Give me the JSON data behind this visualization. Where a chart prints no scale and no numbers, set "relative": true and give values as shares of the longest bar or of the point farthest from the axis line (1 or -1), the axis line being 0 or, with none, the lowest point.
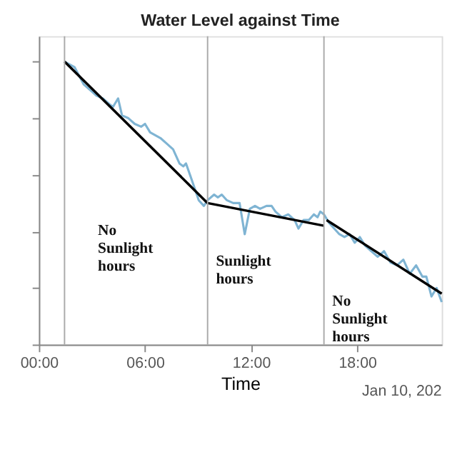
{
  "chart_data": {
    "type": "line",
    "title": "Water Level against Time",
    "xlabel": "Time",
    "relative": true,
    "tick_labels": "x",
    "grid": false,
    "marker": "none",
    "line_style": "solid",
    "xlim": [
      0,
      22.78
    ],
    "xticks": [
      {
        "value": 0,
        "label": "00:00"
      },
      {
        "value": 6,
        "label": "06:00"
      },
      {
        "value": 12,
        "label": "12:00"
      },
      {
        "value": 18,
        "label": "18:00"
      }
    ],
    "series": [
      {
        "color": "#7fb4d3",
        "x": [
          1.45,
          2.02,
          2.53,
          2.89,
          3.25,
          3.62,
          3.98,
          4.19,
          4.48,
          4.7,
          5.06,
          5.42,
          5.78,
          6.0,
          6.29,
          6.58,
          6.87,
          7.23,
          7.59,
          7.95,
          8.17,
          8.32,
          8.6,
          8.82,
          9.04,
          9.33,
          9.54,
          9.91,
          10.12,
          10.34,
          10.63,
          10.99,
          11.35,
          11.64,
          11.93,
          12.22,
          12.51,
          12.87,
          13.16,
          13.38,
          13.74,
          14.1,
          14.46,
          14.68,
          14.97,
          15.26,
          15.55,
          15.76,
          15.91,
          16.12,
          16.41,
          16.7,
          16.99,
          17.28,
          17.57,
          17.86,
          18.15,
          18.44,
          18.8,
          19.16,
          19.52,
          19.88,
          20.25,
          20.61,
          20.97,
          21.33,
          21.69,
          21.91,
          22.2,
          22.49,
          22.78
        ],
        "values": [
          1.0,
          0.98,
          0.92,
          0.9,
          0.88,
          0.87,
          0.85,
          0.84,
          0.87,
          0.81,
          0.8,
          0.78,
          0.77,
          0.78,
          0.75,
          0.74,
          0.73,
          0.71,
          0.69,
          0.64,
          0.63,
          0.64,
          0.59,
          0.55,
          0.51,
          0.49,
          0.51,
          0.53,
          0.52,
          0.53,
          0.51,
          0.5,
          0.5,
          0.39,
          0.48,
          0.49,
          0.48,
          0.49,
          0.49,
          0.47,
          0.45,
          0.46,
          0.44,
          0.41,
          0.44,
          0.44,
          0.46,
          0.45,
          0.47,
          0.46,
          0.43,
          0.41,
          0.39,
          0.38,
          0.39,
          0.36,
          0.38,
          0.35,
          0.33,
          0.31,
          0.33,
          0.29,
          0.28,
          0.3,
          0.25,
          0.28,
          0.24,
          0.24,
          0.17,
          0.2,
          0.15
        ]
      },
      {
        "color": "#000000",
        "x": [
          1.45,
          9.54
        ],
        "values": [
          1.0,
          0.5
        ]
      },
      {
        "color": "#000000",
        "x": [
          9.54,
          16.12
        ],
        "values": [
          0.5,
          0.42
        ]
      },
      {
        "color": "#000000",
        "x": [
          16.27,
          22.78
        ],
        "values": [
          0.44,
          0.18
        ]
      }
    ],
    "ref_lines": [
      {
        "axis": "x",
        "value": 1.45,
        "color": "#aaaaaa"
      },
      {
        "axis": "x",
        "value": 9.54,
        "color": "#aaaaaa"
      },
      {
        "axis": "x",
        "value": 16.12,
        "color": "#aaaaaa"
      }
    ],
    "annotations": [
      "No\nSunlight\nhours",
      "Sunlight\nhours",
      "No\nSunlight\nhours",
      "Jan 10, 202"
    ]
  }
}
